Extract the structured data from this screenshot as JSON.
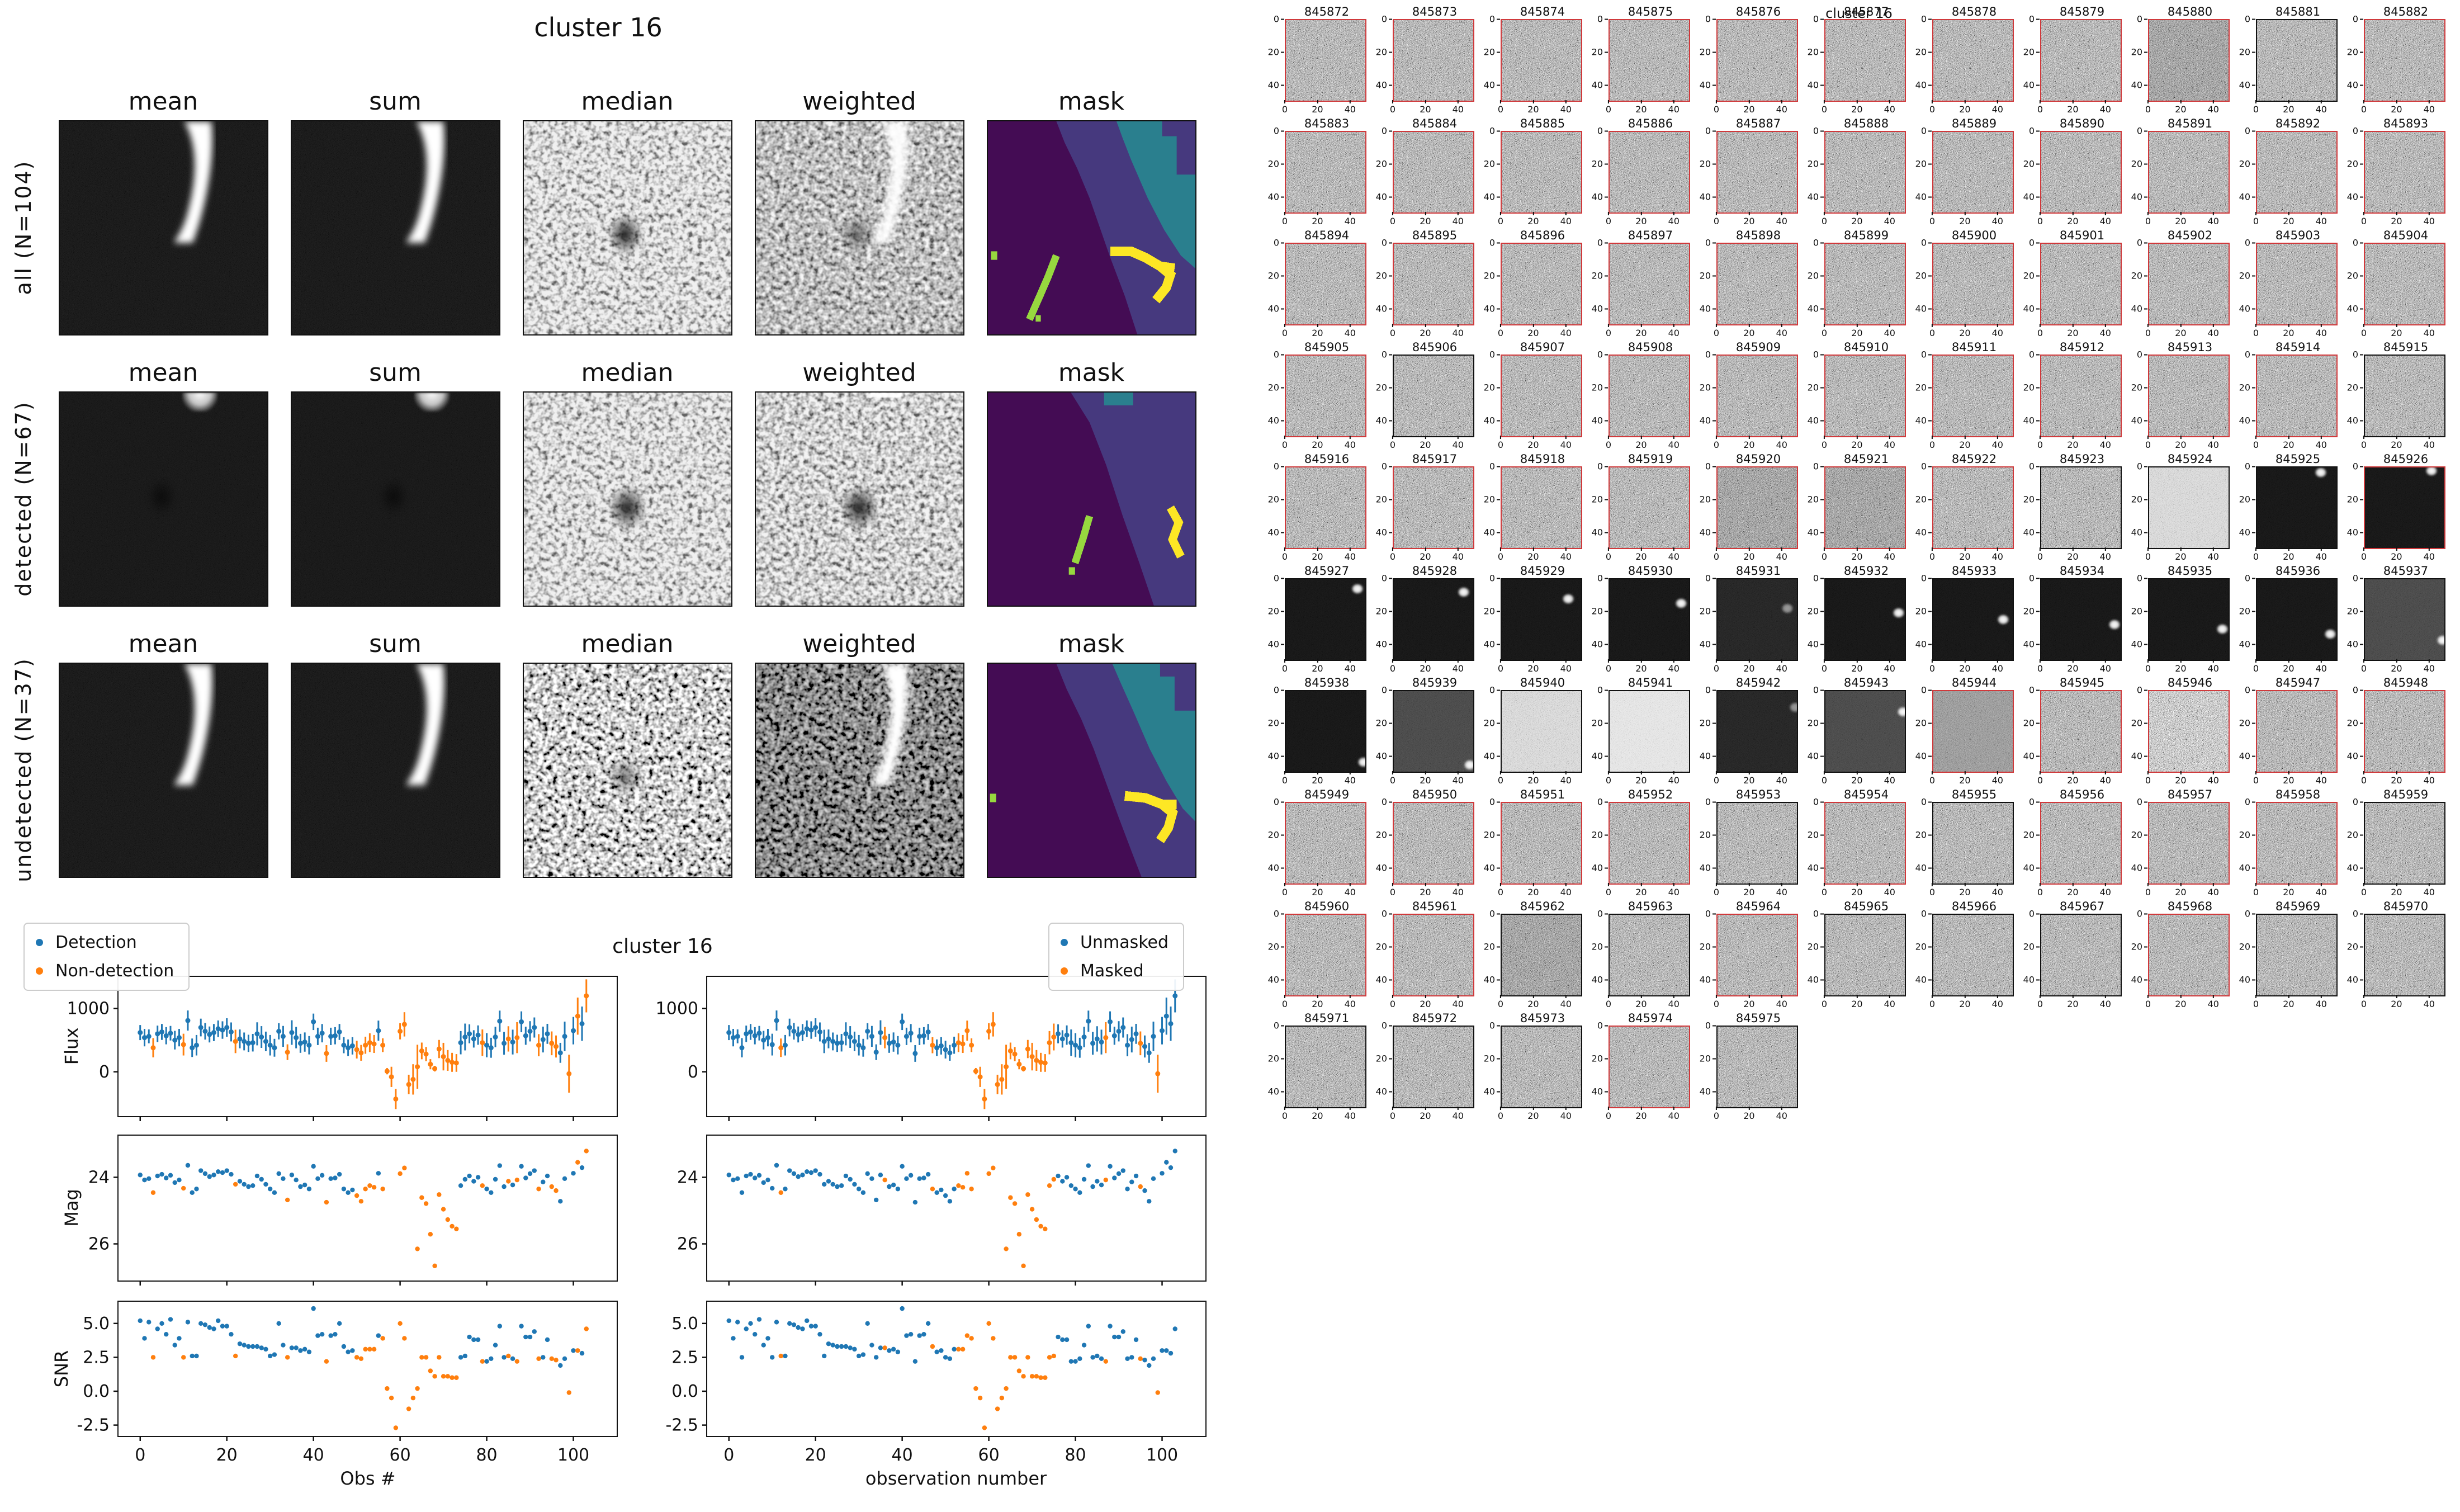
{
  "palette": {
    "blue": "#1f77b4",
    "orange": "#ff7f0e",
    "mask-purple": "#440c54",
    "mask-slate": "#46397e",
    "mask-teal": "#2a7f8e",
    "mask-yellow": "#fde725",
    "mask-green": "#97d83f",
    "thumb-red": "#d0393b",
    "ink": "#111111"
  },
  "left_figure": {
    "title": "cluster 16",
    "col_labels": [
      "mean",
      "sum",
      "median",
      "weighted",
      "mask"
    ],
    "rows": [
      {
        "label": "all (N=104)"
      },
      {
        "label": "detected (N=67)"
      },
      {
        "label": "undetected (N=37)"
      }
    ]
  },
  "chart_data": {
    "type": "scatter",
    "suptitle": "cluster 16",
    "legend_left": [
      "Detection",
      "Non-detection"
    ],
    "legend_right": [
      "Unmasked",
      "Masked"
    ],
    "xlabel_left": "Obs #",
    "xlabel_right": "observation number",
    "xlim": [
      -5,
      110
    ],
    "xticks": [
      0,
      20,
      40,
      60,
      80,
      100
    ],
    "panels": {
      "flux": {
        "ylabel": "Flux",
        "ytop": 1500,
        "ybot": -700,
        "ytick_vals": [
          1000,
          0
        ],
        "yticks": [
          "1000",
          "0"
        ],
        "errorbars": true,
        "show_x": false
      },
      "mag": {
        "ylabel": "Mag",
        "ytop": 22.75,
        "ybot": 27.1,
        "ytick_vals": [
          24,
          26
        ],
        "yticks": [
          "24",
          "26"
        ],
        "errorbars": false,
        "show_x": false
      },
      "snr": {
        "ylabel": "SNR",
        "ytop": 6.6,
        "ybot": -3.3,
        "ytick_vals": [
          5.0,
          2.5,
          0.0,
          -2.5
        ],
        "yticks": [
          "5.0",
          "2.5",
          "0.0",
          "-2.5"
        ],
        "errorbars": false,
        "show_x": true
      }
    },
    "flux": [
      620,
      540,
      560,
      380,
      600,
      630,
      570,
      610,
      500,
      540,
      430,
      810,
      380,
      420,
      700,
      640,
      590,
      620,
      680,
      660,
      700,
      630,
      480,
      520,
      480,
      450,
      460,
      600,
      550,
      480,
      420,
      380,
      640,
      560,
      310,
      620,
      540,
      450,
      470,
      420,
      790,
      560,
      610,
      290,
      560,
      570,
      630,
      420,
      380,
      410,
      350,
      300,
      420,
      460,
      440,
      650,
      420,
      10,
      -80,
      -430,
      640,
      750,
      -200,
      -120,
      80,
      330,
      280,
      120,
      50,
      360,
      240,
      180,
      150,
      140,
      460,
      550,
      600,
      520,
      580,
      460,
      420,
      380,
      550,
      800,
      450,
      520,
      470,
      540,
      790,
      570,
      640,
      700,
      420,
      510,
      600,
      450,
      400,
      300,
      560,
      -30,
      650,
      880,
      760,
      1200
    ],
    "err": [
      119,
      138,
      110,
      152,
      130,
      126,
      136,
      115,
      147,
      138,
      172,
      159,
      146,
      162,
      140,
      131,
      126,
      135,
      131,
      138,
      146,
      150,
      185,
      149,
      141,
      136,
      139,
      182,
      172,
      155,
      162,
      141,
      128,
      165,
      124,
      194,
      169,
      150,
      152,
      145,
      130,
      137,
      145,
      132,
      137,
      136,
      126,
      127,
      131,
      137,
      140,
      125,
      135,
      148,
      142,
      159,
      108,
      50,
      160,
      159,
      128,
      192,
      154,
      240,
      348,
      132,
      112,
      80,
      45,
      144,
      218,
      164,
      150,
      140,
      184,
      212,
      150,
      137,
      153,
      209,
      191,
      158,
      162,
      167,
      180,
      200,
      196,
      245,
      165,
      143,
      160,
      159,
      175,
      204,
      158,
      188,
      174,
      158,
      233,
      300,
      217,
      293,
      271,
      261
    ],
    "mag": [
      23.93,
      24.08,
      24.04,
      24.46,
      23.96,
      23.91,
      24.02,
      23.94,
      24.16,
      24.08,
      24.33,
      23.64,
      24.46,
      24.35,
      23.8,
      23.89,
      23.98,
      23.93,
      23.83,
      23.86,
      23.8,
      23.91,
      24.21,
      24.12,
      24.21,
      24.28,
      24.25,
      23.96,
      24.06,
      24.21,
      24.35,
      24.46,
      23.89,
      24.04,
      24.68,
      23.93,
      24.08,
      24.28,
      24.23,
      24.35,
      23.67,
      24.04,
      23.94,
      24.75,
      24.04,
      24.02,
      23.91,
      24.35,
      24.46,
      24.38,
      24.55,
      24.72,
      24.35,
      24.25,
      24.3,
      23.88,
      24.35,
      null,
      null,
      null,
      23.89,
      23.72,
      null,
      null,
      26.15,
      24.61,
      24.79,
      25.71,
      26.66,
      24.52,
      24.96,
      25.27,
      25.47,
      25.55,
      24.25,
      24.06,
      23.96,
      24.12,
      24.0,
      24.25,
      24.35,
      24.46,
      24.06,
      23.65,
      24.28,
      24.12,
      24.23,
      24.08,
      23.67,
      24.02,
      23.89,
      23.8,
      24.35,
      24.14,
      23.96,
      24.28,
      24.4,
      24.72,
      24.04,
      null,
      23.88,
      23.55,
      23.71,
      23.21
    ],
    "snr": [
      5.2,
      3.9,
      5.1,
      2.5,
      4.6,
      5.0,
      4.2,
      5.3,
      3.4,
      3.9,
      2.5,
      5.1,
      2.6,
      2.6,
      5.0,
      4.9,
      4.7,
      4.6,
      5.2,
      4.8,
      4.8,
      4.2,
      2.6,
      3.5,
      3.4,
      3.3,
      3.3,
      3.3,
      3.2,
      3.1,
      2.6,
      2.7,
      5.0,
      3.4,
      2.5,
      3.2,
      3.2,
      3.0,
      3.1,
      2.9,
      6.1,
      4.1,
      4.2,
      2.2,
      4.1,
      4.2,
      5.0,
      3.3,
      2.9,
      3.0,
      2.5,
      2.4,
      3.1,
      3.1,
      3.1,
      4.1,
      3.9,
      0.2,
      -0.5,
      -2.7,
      5.0,
      3.9,
      -1.3,
      -0.5,
      0.2,
      2.5,
      2.5,
      1.5,
      1.1,
      2.5,
      1.1,
      1.1,
      1.0,
      1.0,
      2.5,
      2.6,
      4.0,
      3.8,
      3.8,
      2.2,
      2.2,
      2.4,
      3.4,
      4.8,
      2.5,
      2.6,
      2.4,
      2.2,
      4.8,
      4.0,
      4.0,
      4.4,
      2.4,
      2.5,
      3.8,
      2.4,
      2.3,
      1.9,
      2.4,
      -0.1,
      3.0,
      3.0,
      2.8,
      4.6
    ],
    "nondetect_idx": [
      3,
      10,
      22,
      34,
      43,
      50,
      51,
      52,
      53,
      54,
      56,
      57,
      58,
      59,
      60,
      61,
      62,
      63,
      64,
      65,
      66,
      67,
      68,
      69,
      70,
      71,
      72,
      73,
      79,
      85,
      87,
      92,
      95,
      96,
      99,
      101,
      103
    ],
    "masked_idx": [
      12,
      36,
      47,
      53,
      54,
      55,
      56,
      57,
      58,
      59,
      60,
      61,
      62,
      63,
      64,
      65,
      66,
      67,
      68,
      69,
      70,
      71,
      72,
      73,
      74,
      75,
      87,
      95,
      99
    ]
  },
  "thumbnails": {
    "suptitle": "cluster 16",
    "axis_ticks": [
      "0",
      "20",
      "40"
    ],
    "items": [
      {
        "id": "845872",
        "border": "red",
        "look": "n"
      },
      {
        "id": "845873",
        "border": "red",
        "look": "n"
      },
      {
        "id": "845874",
        "border": "red",
        "look": "n"
      },
      {
        "id": "845875",
        "border": "red",
        "look": "n"
      },
      {
        "id": "845876",
        "border": "red",
        "look": "n"
      },
      {
        "id": "845877",
        "border": "red",
        "look": "n"
      },
      {
        "id": "845878",
        "border": "red",
        "look": "n"
      },
      {
        "id": "845879",
        "border": "red",
        "look": "n"
      },
      {
        "id": "845880",
        "border": "red",
        "look": "nd"
      },
      {
        "id": "845881",
        "border": "black",
        "look": "n"
      },
      {
        "id": "845882",
        "border": "red",
        "look": "n"
      },
      {
        "id": "845883",
        "border": "red",
        "look": "n"
      },
      {
        "id": "845884",
        "border": "red",
        "look": "n"
      },
      {
        "id": "845885",
        "border": "red",
        "look": "n"
      },
      {
        "id": "845886",
        "border": "red",
        "look": "n"
      },
      {
        "id": "845887",
        "border": "red",
        "look": "n"
      },
      {
        "id": "845888",
        "border": "red",
        "look": "n"
      },
      {
        "id": "845889",
        "border": "red",
        "look": "n"
      },
      {
        "id": "845890",
        "border": "red",
        "look": "n"
      },
      {
        "id": "845891",
        "border": "red",
        "look": "n"
      },
      {
        "id": "845892",
        "border": "red",
        "look": "n"
      },
      {
        "id": "845893",
        "border": "red",
        "look": "n"
      },
      {
        "id": "845894",
        "border": "red",
        "look": "n"
      },
      {
        "id": "845895",
        "border": "red",
        "look": "n"
      },
      {
        "id": "845896",
        "border": "red",
        "look": "n"
      },
      {
        "id": "845897",
        "border": "red",
        "look": "n"
      },
      {
        "id": "845898",
        "border": "red",
        "look": "n"
      },
      {
        "id": "845899",
        "border": "red",
        "look": "n"
      },
      {
        "id": "845900",
        "border": "red",
        "look": "n"
      },
      {
        "id": "845901",
        "border": "red",
        "look": "n"
      },
      {
        "id": "845902",
        "border": "red",
        "look": "n"
      },
      {
        "id": "845903",
        "border": "red",
        "look": "n"
      },
      {
        "id": "845904",
        "border": "red",
        "look": "n"
      },
      {
        "id": "845905",
        "border": "red",
        "look": "n"
      },
      {
        "id": "845906",
        "border": "black",
        "look": "n"
      },
      {
        "id": "845907",
        "border": "red",
        "look": "n"
      },
      {
        "id": "845908",
        "border": "red",
        "look": "n"
      },
      {
        "id": "845909",
        "border": "red",
        "look": "n"
      },
      {
        "id": "845910",
        "border": "red",
        "look": "n"
      },
      {
        "id": "845911",
        "border": "red",
        "look": "n"
      },
      {
        "id": "845912",
        "border": "red",
        "look": "n"
      },
      {
        "id": "845913",
        "border": "red",
        "look": "n"
      },
      {
        "id": "845914",
        "border": "red",
        "look": "n"
      },
      {
        "id": "845915",
        "border": "black",
        "look": "n"
      },
      {
        "id": "845916",
        "border": "red",
        "look": "n"
      },
      {
        "id": "845917",
        "border": "red",
        "look": "n"
      },
      {
        "id": "845918",
        "border": "red",
        "look": "n"
      },
      {
        "id": "845919",
        "border": "red",
        "look": "n"
      },
      {
        "id": "845920",
        "border": "red",
        "look": "nd"
      },
      {
        "id": "845921",
        "border": "red",
        "look": "nd"
      },
      {
        "id": "845922",
        "border": "red",
        "look": "n"
      },
      {
        "id": "845923",
        "border": "black",
        "look": "n"
      },
      {
        "id": "845924",
        "border": "black",
        "look": "sl"
      },
      {
        "id": "845925",
        "border": "black",
        "look": "dk",
        "blob": [
          40,
          3
        ]
      },
      {
        "id": "845926",
        "border": "red",
        "look": "dk",
        "blob": [
          42,
          2
        ]
      },
      {
        "id": "845927",
        "border": "black",
        "look": "dk",
        "blob": [
          45,
          6
        ]
      },
      {
        "id": "845928",
        "border": "black",
        "look": "dk",
        "blob": [
          44,
          8
        ]
      },
      {
        "id": "845929",
        "border": "black",
        "look": "dk",
        "blob": [
          42,
          12
        ]
      },
      {
        "id": "845930",
        "border": "black",
        "look": "dk",
        "blob": [
          45,
          15
        ]
      },
      {
        "id": "845931",
        "border": "black",
        "look": "dk2",
        "blob": [
          44,
          18
        ]
      },
      {
        "id": "845932",
        "border": "black",
        "look": "dk",
        "blob": [
          46,
          21
        ]
      },
      {
        "id": "845933",
        "border": "black",
        "look": "dk",
        "blob": [
          44,
          25
        ]
      },
      {
        "id": "845934",
        "border": "black",
        "look": "dk",
        "blob": [
          46,
          28
        ]
      },
      {
        "id": "845935",
        "border": "black",
        "look": "dk",
        "blob": [
          46,
          31
        ]
      },
      {
        "id": "845936",
        "border": "black",
        "look": "dk",
        "blob": [
          46,
          34
        ]
      },
      {
        "id": "845937",
        "border": "black",
        "look": "dg",
        "blob": [
          49,
          38
        ]
      },
      {
        "id": "845938",
        "border": "black",
        "look": "dk",
        "blob": [
          49,
          44
        ]
      },
      {
        "id": "845939",
        "border": "black",
        "look": "dg",
        "blob": [
          48,
          46
        ]
      },
      {
        "id": "845940",
        "border": "black",
        "look": "sl"
      },
      {
        "id": "845941",
        "border": "black",
        "look": "sll"
      },
      {
        "id": "845942",
        "border": "black",
        "look": "dk2",
        "blob": [
          49,
          10
        ]
      },
      {
        "id": "845943",
        "border": "black",
        "look": "dg",
        "blob": [
          49,
          13
        ]
      },
      {
        "id": "845944",
        "border": "red",
        "look": "ns"
      },
      {
        "id": "845945",
        "border": "red",
        "look": "n"
      },
      {
        "id": "845946",
        "border": "red",
        "look": "nl"
      },
      {
        "id": "845947",
        "border": "red",
        "look": "n"
      },
      {
        "id": "845948",
        "border": "red",
        "look": "n"
      },
      {
        "id": "845949",
        "border": "red",
        "look": "n"
      },
      {
        "id": "845950",
        "border": "red",
        "look": "n"
      },
      {
        "id": "845951",
        "border": "red",
        "look": "n"
      },
      {
        "id": "845952",
        "border": "red",
        "look": "n"
      },
      {
        "id": "845953",
        "border": "black",
        "look": "n"
      },
      {
        "id": "845954",
        "border": "red",
        "look": "n"
      },
      {
        "id": "845955",
        "border": "black",
        "look": "n"
      },
      {
        "id": "845956",
        "border": "red",
        "look": "n"
      },
      {
        "id": "845957",
        "border": "red",
        "look": "n"
      },
      {
        "id": "845958",
        "border": "red",
        "look": "n"
      },
      {
        "id": "845959",
        "border": "black",
        "look": "n"
      },
      {
        "id": "845960",
        "border": "red",
        "look": "n"
      },
      {
        "id": "845961",
        "border": "red",
        "look": "n"
      },
      {
        "id": "845962",
        "border": "black",
        "look": "nd"
      },
      {
        "id": "845963",
        "border": "black",
        "look": "n"
      },
      {
        "id": "845964",
        "border": "red",
        "look": "n"
      },
      {
        "id": "845965",
        "border": "black",
        "look": "n"
      },
      {
        "id": "845966",
        "border": "black",
        "look": "n"
      },
      {
        "id": "845967",
        "border": "black",
        "look": "n"
      },
      {
        "id": "845968",
        "border": "red",
        "look": "n"
      },
      {
        "id": "845969",
        "border": "black",
        "look": "n"
      },
      {
        "id": "845970",
        "border": "black",
        "look": "n"
      },
      {
        "id": "845971",
        "border": "black",
        "look": "n"
      },
      {
        "id": "845972",
        "border": "black",
        "look": "n"
      },
      {
        "id": "845973",
        "border": "black",
        "look": "n"
      },
      {
        "id": "845974",
        "border": "red",
        "look": "n"
      },
      {
        "id": "845975",
        "border": "black",
        "look": "n"
      }
    ]
  }
}
